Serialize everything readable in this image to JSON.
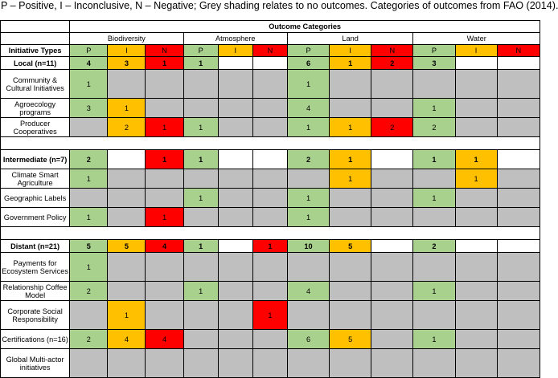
{
  "caption": "P – Positive, I – Inconclusive, N – Negative; Grey shading relates to no outcomes. Categories of outcomes from FAO (2014).",
  "header": {
    "outcome_categories": "Outcome Categories",
    "groups": [
      "Biodiversity",
      "Atmosphere",
      "Land",
      "Water"
    ],
    "initiative_types": "Initiative Types",
    "sub": [
      "P",
      "I",
      "N"
    ]
  },
  "colors": {
    "positive": "#a9d18e",
    "inconclusive": "#ffc000",
    "negative": "#ff0000",
    "none": "#bfbfbf"
  },
  "sections": [
    {
      "title": "Local (n=11)",
      "values": [
        "4",
        "3",
        "1",
        "1",
        "",
        "",
        "6",
        "1",
        "2",
        "3",
        "",
        ""
      ],
      "rows": [
        {
          "label": "Community & Cultural Initiatives",
          "values": [
            "1",
            "",
            "",
            "",
            "",
            "",
            "1",
            "",
            "",
            "",
            "",
            ""
          ]
        },
        {
          "label": "Agroecology programs",
          "values": [
            "3",
            "1",
            "",
            "",
            "",
            "",
            "4",
            "",
            "",
            "1",
            "",
            ""
          ]
        },
        {
          "label": "Producer Cooperatives",
          "values": [
            "",
            "2",
            "1",
            "1",
            "",
            "",
            "1",
            "1",
            "2",
            "2",
            "",
            ""
          ]
        }
      ]
    },
    {
      "title": "Intermediate (n=7)",
      "values": [
        "2",
        "",
        "1",
        "1",
        "",
        "",
        "2",
        "1",
        "",
        "1",
        "1",
        ""
      ],
      "rows": [
        {
          "label": "Climate Smart Agriculture",
          "values": [
            "1",
            "",
            "",
            "",
            "",
            "",
            "",
            "1",
            "",
            "",
            "1",
            ""
          ]
        },
        {
          "label": "Geographic Labels",
          "values": [
            "",
            "",
            "",
            "1",
            "",
            "",
            "1",
            "",
            "",
            "1",
            "",
            ""
          ]
        },
        {
          "label": "Government Policy",
          "values": [
            "1",
            "",
            "1",
            "",
            "",
            "",
            "1",
            "",
            "",
            "",
            "",
            ""
          ]
        }
      ]
    },
    {
      "title": "Distant (n=21)",
      "values": [
        "5",
        "5",
        "4",
        "1",
        "",
        "1",
        "10",
        "5",
        "",
        "2",
        "",
        ""
      ],
      "rows": [
        {
          "label": "Payments for Ecosystem Services",
          "values": [
            "1",
            "",
            "",
            "",
            "",
            "",
            "",
            "",
            "",
            "",
            "",
            ""
          ]
        },
        {
          "label": "Relationship Coffee Model",
          "values": [
            "2",
            "",
            "",
            "1",
            "",
            "",
            "4",
            "",
            "",
            "1",
            "",
            ""
          ]
        },
        {
          "label": "Corporate Social Responsibility",
          "values": [
            "",
            "1",
            "",
            "",
            "",
            "1",
            "",
            "",
            "",
            "",
            "",
            ""
          ]
        },
        {
          "label": "Certifications (n=16)",
          "values": [
            "2",
            "4",
            "4",
            "",
            "",
            "",
            "6",
            "5",
            "",
            "1",
            "",
            ""
          ]
        },
        {
          "label": "Global Multi-actor initiatives",
          "values": [
            "",
            "",
            "",
            "",
            "",
            "",
            "",
            "",
            "",
            "",
            "",
            ""
          ]
        }
      ]
    }
  ]
}
